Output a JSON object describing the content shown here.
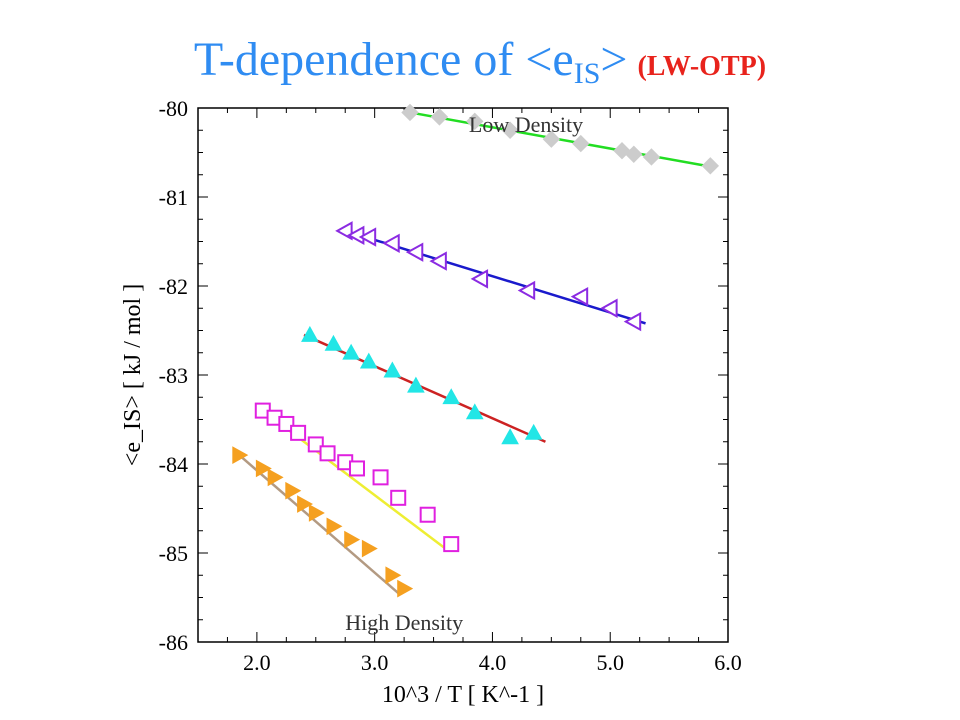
{
  "title": {
    "main_prefix": "T-dependence of <e",
    "main_sub": "IS",
    "main_suffix": ">",
    "note": "(LW-OTP)"
  },
  "colors": {
    "title": "#2f8cf2",
    "note": "#e8231c"
  },
  "chart_data": {
    "type": "scatter",
    "title": "T-dependence of <eIS> (LW-OTP)",
    "xlabel": "10^3 / T [ K^-1 ]",
    "ylabel": "<e_IS> [ kJ / mol ]",
    "xlim": [
      1.5,
      6.0
    ],
    "ylim": [
      -86,
      -80
    ],
    "xticks": [
      "2.0",
      "3.0",
      "4.0",
      "5.0",
      "6.0"
    ],
    "yticks": [
      "-80",
      "-81",
      "-82",
      "-83",
      "-84",
      "-85",
      "-86"
    ],
    "grid": false,
    "annotations": [
      {
        "text": "Low Density",
        "x": 3.8,
        "y": -80.2
      },
      {
        "text": "High Density",
        "x": 2.75,
        "y": -85.8
      }
    ],
    "series": [
      {
        "marker": "diamond",
        "color": "#cccccc",
        "line_color": "#22dd22",
        "x": [
          3.3,
          3.55,
          3.85,
          4.15,
          4.5,
          4.75,
          5.1,
          5.2,
          5.35,
          5.85
        ],
        "y": [
          -80.05,
          -80.1,
          -80.15,
          -80.25,
          -80.35,
          -80.4,
          -80.48,
          -80.52,
          -80.55,
          -80.65
        ],
        "fit": [
          [
            3.3,
            -80.05
          ],
          [
            5.9,
            -80.67
          ]
        ]
      },
      {
        "marker": "triangle-left",
        "color": "#8b2be2",
        "line_color": "#1a1acc",
        "x": [
          2.75,
          2.85,
          2.95,
          3.15,
          3.35,
          3.55,
          3.9,
          4.3,
          4.75,
          5.0,
          5.2
        ],
        "y": [
          -81.38,
          -81.43,
          -81.45,
          -81.52,
          -81.62,
          -81.72,
          -81.92,
          -82.05,
          -82.12,
          -82.25,
          -82.4
        ],
        "fit": [
          [
            2.75,
            -81.38
          ],
          [
            5.3,
            -82.42
          ]
        ]
      },
      {
        "marker": "triangle-up",
        "color": "#22e6e6",
        "line_color": "#cc2222",
        "x": [
          2.45,
          2.65,
          2.8,
          2.95,
          3.15,
          3.35,
          3.65,
          3.85,
          4.15,
          4.35
        ],
        "y": [
          -82.55,
          -82.65,
          -82.75,
          -82.85,
          -82.95,
          -83.12,
          -83.25,
          -83.42,
          -83.7,
          -83.65
        ],
        "fit": [
          [
            2.4,
            -82.55
          ],
          [
            4.45,
            -83.75
          ]
        ]
      },
      {
        "marker": "square",
        "color": "#e020e0",
        "line_color": "#eeee33",
        "x": [
          2.05,
          2.15,
          2.25,
          2.35,
          2.5,
          2.6,
          2.75,
          2.85,
          3.05,
          3.2,
          3.45,
          3.65
        ],
        "y": [
          -83.4,
          -83.48,
          -83.55,
          -83.65,
          -83.78,
          -83.88,
          -83.98,
          -84.05,
          -84.15,
          -84.38,
          -84.57,
          -84.9
        ],
        "fit": [
          [
            2.0,
            -83.35
          ],
          [
            3.6,
            -84.95
          ]
        ]
      },
      {
        "marker": "triangle-right",
        "color": "#f5a020",
        "line_color": "#b39a82",
        "x": [
          1.85,
          2.05,
          2.15,
          2.3,
          2.4,
          2.5,
          2.65,
          2.8,
          2.95,
          3.15,
          3.25
        ],
        "y": [
          -83.9,
          -84.05,
          -84.15,
          -84.3,
          -84.45,
          -84.55,
          -84.7,
          -84.85,
          -84.95,
          -85.25,
          -85.4
        ],
        "fit": [
          [
            1.85,
            -83.9
          ],
          [
            3.2,
            -85.45
          ]
        ]
      }
    ]
  }
}
